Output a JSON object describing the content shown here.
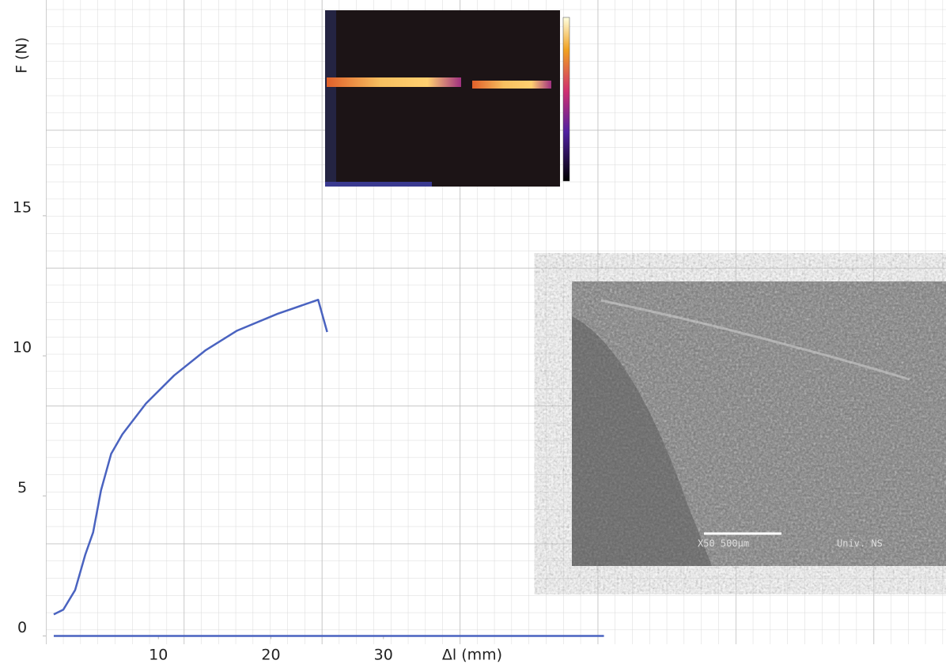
{
  "chart_data": {
    "type": "line",
    "y_label": "F (N)",
    "x_label": "Δl (mm)",
    "xlim": [
      0,
      80
    ],
    "ylim": [
      -1,
      22.7
    ],
    "xticks": [
      10,
      20,
      30
    ],
    "yticks": [
      0,
      5,
      10,
      15
    ],
    "series": [
      {
        "color": "#4a63c0",
        "x": [
          0.7,
          1.55,
          2.6,
          3.5,
          4.2,
          4.9,
          5.8,
          6.8,
          8.9,
          11.4,
          14.2,
          17.0,
          20.6,
          24.2,
          25.0
        ],
        "values": [
          0.77,
          0.94,
          1.64,
          2.9,
          3.7,
          5.2,
          6.5,
          7.2,
          8.3,
          9.3,
          10.2,
          10.9,
          11.5,
          12.0,
          10.85
        ]
      },
      {
        "color": "#4a63c0",
        "x": [
          0.7,
          49.6
        ],
        "values": [
          0,
          0
        ]
      }
    ],
    "inset_texts": [
      "X50 500µm",
      "Univ. NS"
    ]
  }
}
